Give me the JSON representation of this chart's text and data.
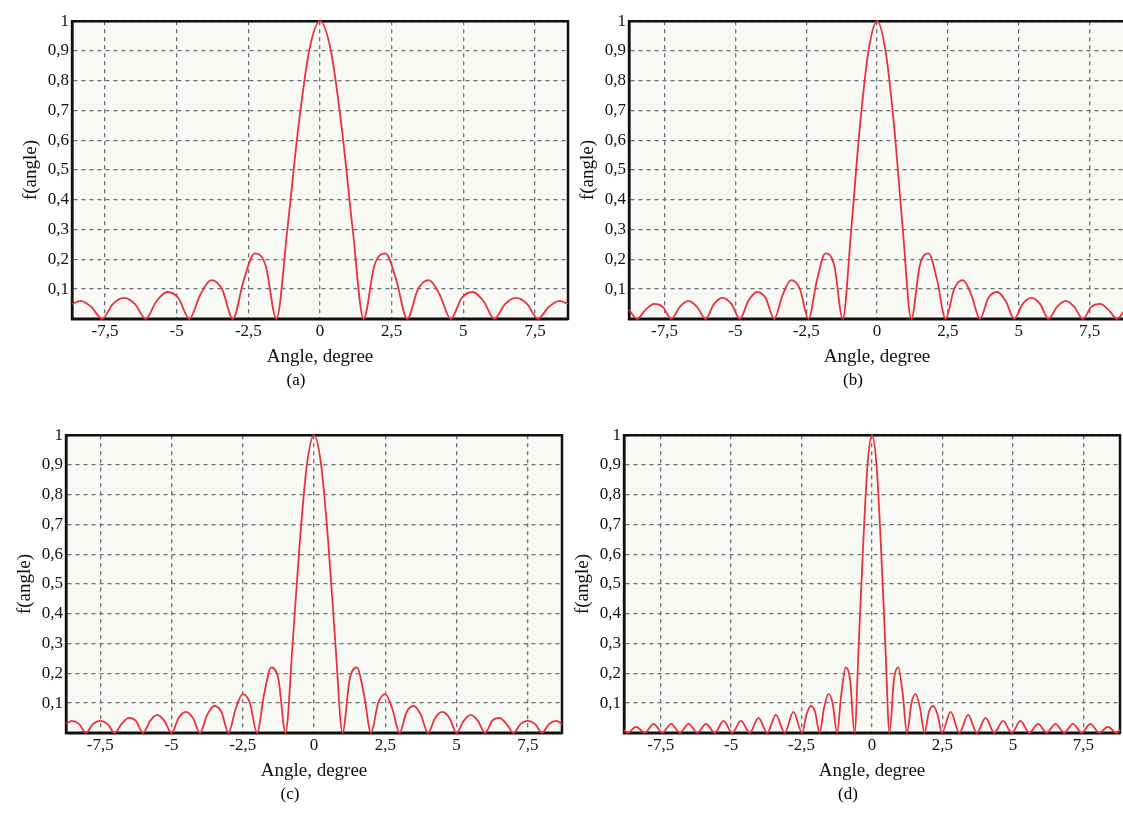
{
  "chart_data": [
    {
      "type": "line",
      "xlabel": "Angle, degree",
      "ylabel": "f(angle)",
      "color": "#e8333c",
      "grid": true,
      "marker": "none",
      "annotations": [
        "(a)"
      ],
      "xlim": [
        -8.65,
        8.65
      ],
      "ylim": [
        0,
        1
      ],
      "xticks": [
        {
          "value": -7.5,
          "label": "-7,5"
        },
        -5,
        {
          "value": -2.5,
          "label": "-2,5"
        },
        0,
        {
          "value": 2.5,
          "label": "2,5"
        },
        5,
        {
          "value": 7.5,
          "label": "7,5"
        }
      ],
      "yticks": [
        {
          "value": 0.1,
          "label": "0,1"
        },
        {
          "value": 0.2,
          "label": "0,2"
        },
        {
          "value": 0.3,
          "label": "0,3"
        },
        {
          "value": 0.4,
          "label": "0,4"
        },
        {
          "value": 0.5,
          "label": "0,5"
        },
        {
          "value": 0.6,
          "label": "0,6"
        },
        {
          "value": 0.7,
          "label": "0,7"
        },
        {
          "value": 0.8,
          "label": "0,8"
        },
        {
          "value": 0.9,
          "label": "0,9"
        },
        {
          "value": 1,
          "label": "1"
        }
      ],
      "x": [
        -8.65,
        -8.36,
        -7.98,
        -7.6,
        -7.22,
        -6.84,
        -6.46,
        -6.08,
        -5.7,
        -5.32,
        -4.94,
        -4.56,
        -4.18,
        -3.8,
        -3.42,
        -3.04,
        -2.66,
        -2.28,
        -1.9,
        -1.52,
        -1.14,
        -0.76,
        -0.38,
        0,
        0.38,
        0.76,
        1.14,
        1.52,
        1.9,
        2.28,
        2.66,
        3.04,
        3.42,
        3.8,
        4.18,
        4.56,
        4.94,
        5.32,
        5.7,
        6.08,
        6.46,
        6.84,
        7.22,
        7.6,
        7.98,
        8.36,
        8.65
      ],
      "values": [
        0.05,
        0.06,
        0.04,
        0,
        0.05,
        0.07,
        0.05,
        0,
        0.06,
        0.09,
        0.07,
        0,
        0.08,
        0.13,
        0.1,
        0,
        0.13,
        0.22,
        0.18,
        0,
        0.3,
        0.64,
        0.9,
        1,
        0.9,
        0.64,
        0.3,
        0,
        0.18,
        0.22,
        0.13,
        0,
        0.1,
        0.13,
        0.08,
        0,
        0.07,
        0.09,
        0.06,
        0,
        0.05,
        0.07,
        0.05,
        0,
        0.04,
        0.06,
        0.05
      ]
    },
    {
      "type": "line",
      "xlabel": "Angle, degree",
      "ylabel": "f(angle)",
      "color": "#e8333c",
      "grid": true,
      "marker": "none",
      "annotations": [
        "(b)"
      ],
      "xlim": [
        -8.75,
        8.75
      ],
      "ylim": [
        0,
        1
      ],
      "xticks": [
        {
          "value": -7.5,
          "label": "-7,5"
        },
        -5,
        {
          "value": -2.5,
          "label": "-2,5"
        },
        0,
        {
          "value": 2.5,
          "label": "2,5"
        },
        5,
        {
          "value": 7.5,
          "label": "7,5"
        }
      ],
      "yticks": [
        {
          "value": 0.1,
          "label": "0,1"
        },
        {
          "value": 0.2,
          "label": "0,2"
        },
        {
          "value": 0.3,
          "label": "0,3"
        },
        {
          "value": 0.4,
          "label": "0,4"
        },
        {
          "value": 0.5,
          "label": "0,5"
        },
        {
          "value": 0.6,
          "label": "0,6"
        },
        {
          "value": 0.7,
          "label": "0,7"
        },
        {
          "value": 0.8,
          "label": "0,8"
        },
        {
          "value": 0.9,
          "label": "0,9"
        },
        {
          "value": 1,
          "label": "1"
        }
      ],
      "x": [
        -8.75,
        -8.47,
        -8.17,
        -7.87,
        -7.56,
        -7.26,
        -6.96,
        -6.66,
        -6.35,
        -6.05,
        -5.75,
        -5.45,
        -5.14,
        -4.84,
        -4.54,
        -4.24,
        -3.93,
        -3.63,
        -3.33,
        -3.03,
        -2.72,
        -2.42,
        -2.12,
        -1.82,
        -1.51,
        -1.21,
        -0.91,
        -0.61,
        -0.3,
        0,
        0.3,
        0.61,
        0.91,
        1.21,
        1.51,
        1.82,
        2.12,
        2.42,
        2.72,
        3.03,
        3.33,
        3.63,
        3.93,
        4.24,
        4.54,
        4.84,
        5.14,
        5.45,
        5.75,
        6.05,
        6.35,
        6.66,
        6.96,
        7.26,
        7.56,
        7.87,
        8.17,
        8.47,
        8.75
      ],
      "values": [
        0.03,
        0,
        0.03,
        0.05,
        0.04,
        0,
        0.04,
        0.06,
        0.04,
        0,
        0.05,
        0.07,
        0.05,
        0,
        0.06,
        0.09,
        0.07,
        0,
        0.08,
        0.13,
        0.1,
        0,
        0.13,
        0.22,
        0.18,
        0,
        0.3,
        0.64,
        0.9,
        1,
        0.9,
        0.64,
        0.3,
        0,
        0.18,
        0.22,
        0.13,
        0,
        0.1,
        0.13,
        0.08,
        0,
        0.07,
        0.09,
        0.06,
        0,
        0.05,
        0.07,
        0.05,
        0,
        0.04,
        0.06,
        0.04,
        0,
        0.04,
        0.05,
        0.03,
        0,
        0.03
      ]
    },
    {
      "type": "line",
      "xlabel": "Angle, degree",
      "ylabel": "f(angle)",
      "color": "#e8333c",
      "grid": true,
      "marker": "none",
      "annotations": [
        "(c)"
      ],
      "xlim": [
        -8.7,
        8.7
      ],
      "ylim": [
        0,
        1
      ],
      "xticks": [
        {
          "value": -7.5,
          "label": "-7,5"
        },
        -5,
        {
          "value": -2.5,
          "label": "-2,5"
        },
        0,
        {
          "value": 2.5,
          "label": "2,5"
        },
        5,
        {
          "value": 7.5,
          "label": "7,5"
        }
      ],
      "yticks": [
        {
          "value": 0.1,
          "label": "0,1"
        },
        {
          "value": 0.2,
          "label": "0,2"
        },
        {
          "value": 0.3,
          "label": "0,3"
        },
        {
          "value": 0.4,
          "label": "0,4"
        },
        {
          "value": 0.5,
          "label": "0,5"
        },
        {
          "value": 0.6,
          "label": "0,6"
        },
        {
          "value": 0.7,
          "label": "0,7"
        },
        {
          "value": 0.8,
          "label": "0,8"
        },
        {
          "value": 0.9,
          "label": "0,9"
        },
        {
          "value": 1,
          "label": "1"
        }
      ],
      "x": [
        -8.7,
        -8.5,
        -8.25,
        -8,
        -7.75,
        -7.5,
        -7.25,
        -7,
        -6.75,
        -6.5,
        -6.25,
        -6,
        -5.75,
        -5.5,
        -5.25,
        -5,
        -4.75,
        -4.5,
        -4.25,
        -4,
        -3.75,
        -3.5,
        -3.25,
        -3,
        -2.75,
        -2.5,
        -2.25,
        -2,
        -1.75,
        -1.5,
        -1.25,
        -1,
        -0.75,
        -0.5,
        -0.25,
        0,
        0.25,
        0.5,
        0.75,
        1,
        1.25,
        1.5,
        1.75,
        2,
        2.25,
        2.5,
        2.75,
        3,
        3.25,
        3.5,
        3.75,
        4,
        4.25,
        4.5,
        4.75,
        5,
        5.25,
        5.5,
        5.75,
        6,
        6.25,
        6.5,
        6.75,
        7,
        7.25,
        7.5,
        7.75,
        8,
        8.25,
        8.5,
        8.7
      ],
      "values": [
        0.03,
        0.04,
        0.03,
        0,
        0.03,
        0.04,
        0.03,
        0,
        0.03,
        0.05,
        0.04,
        0,
        0.04,
        0.06,
        0.04,
        0,
        0.05,
        0.07,
        0.05,
        0,
        0.06,
        0.09,
        0.07,
        0,
        0.08,
        0.13,
        0.1,
        0,
        0.13,
        0.22,
        0.18,
        0,
        0.3,
        0.64,
        0.9,
        1,
        0.9,
        0.64,
        0.3,
        0,
        0.18,
        0.22,
        0.13,
        0,
        0.1,
        0.13,
        0.08,
        0,
        0.07,
        0.09,
        0.06,
        0,
        0.05,
        0.07,
        0.05,
        0,
        0.04,
        0.06,
        0.04,
        0,
        0.04,
        0.05,
        0.03,
        0,
        0.03,
        0.04,
        0.03,
        0,
        0.03,
        0.04,
        0.03
      ]
    },
    {
      "type": "line",
      "xlabel": "Angle, degree",
      "ylabel": "f(angle)",
      "color": "#e8333c",
      "grid": true,
      "marker": "none",
      "annotations": [
        "(d)"
      ],
      "xlim": [
        -8.8,
        8.8
      ],
      "ylim": [
        0,
        1
      ],
      "xticks": [
        {
          "value": -7.5,
          "label": "-7,5"
        },
        -5,
        {
          "value": -2.5,
          "label": "-2,5"
        },
        0,
        {
          "value": 2.5,
          "label": "2,5"
        },
        5,
        {
          "value": 7.5,
          "label": "7,5"
        }
      ],
      "yticks": [
        {
          "value": 0.1,
          "label": "0,1"
        },
        {
          "value": 0.2,
          "label": "0,2"
        },
        {
          "value": 0.3,
          "label": "0,3"
        },
        {
          "value": 0.4,
          "label": "0,4"
        },
        {
          "value": 0.5,
          "label": "0,5"
        },
        {
          "value": 0.6,
          "label": "0,6"
        },
        {
          "value": 0.7,
          "label": "0,7"
        },
        {
          "value": 0.8,
          "label": "0,8"
        },
        {
          "value": 0.9,
          "label": "0,9"
        },
        {
          "value": 1,
          "label": "1"
        }
      ],
      "x": [
        -8.8,
        -8.68,
        -8.37,
        -8.06,
        -7.75,
        -7.44,
        -7.13,
        -6.82,
        -6.51,
        -6.2,
        -5.89,
        -5.58,
        -5.27,
        -4.96,
        -4.65,
        -4.34,
        -4.03,
        -3.72,
        -3.41,
        -3.1,
        -2.79,
        -2.48,
        -2.33,
        -2.17,
        -2.02,
        -1.86,
        -1.71,
        -1.55,
        -1.4,
        -1.24,
        -1.09,
        -0.93,
        -0.78,
        -0.62,
        -0.47,
        -0.31,
        -0.16,
        0,
        0.16,
        0.31,
        0.47,
        0.62,
        0.78,
        0.93,
        1.09,
        1.24,
        1.4,
        1.55,
        1.71,
        1.86,
        2.02,
        2.17,
        2.33,
        2.48,
        2.79,
        3.1,
        3.41,
        3.72,
        4.03,
        4.34,
        4.65,
        4.96,
        5.27,
        5.58,
        5.89,
        6.2,
        6.51,
        6.82,
        7.13,
        7.44,
        7.75,
        8.06,
        8.37,
        8.68,
        8.8
      ],
      "values": [
        0.01,
        0,
        0.02,
        0,
        0.03,
        0,
        0.03,
        0,
        0.03,
        0,
        0.03,
        0,
        0.04,
        0,
        0.04,
        0,
        0.05,
        0,
        0.06,
        0,
        0.07,
        0,
        0.06,
        0.09,
        0.07,
        0,
        0.08,
        0.13,
        0.1,
        0,
        0.13,
        0.22,
        0.18,
        0,
        0.3,
        0.64,
        0.9,
        1,
        0.9,
        0.64,
        0.3,
        0,
        0.18,
        0.22,
        0.13,
        0,
        0.1,
        0.13,
        0.08,
        0,
        0.07,
        0.09,
        0.06,
        0,
        0.07,
        0,
        0.06,
        0,
        0.05,
        0,
        0.04,
        0,
        0.04,
        0,
        0.03,
        0,
        0.03,
        0,
        0.03,
        0,
        0.03,
        0,
        0.02,
        0,
        0.01
      ]
    }
  ]
}
